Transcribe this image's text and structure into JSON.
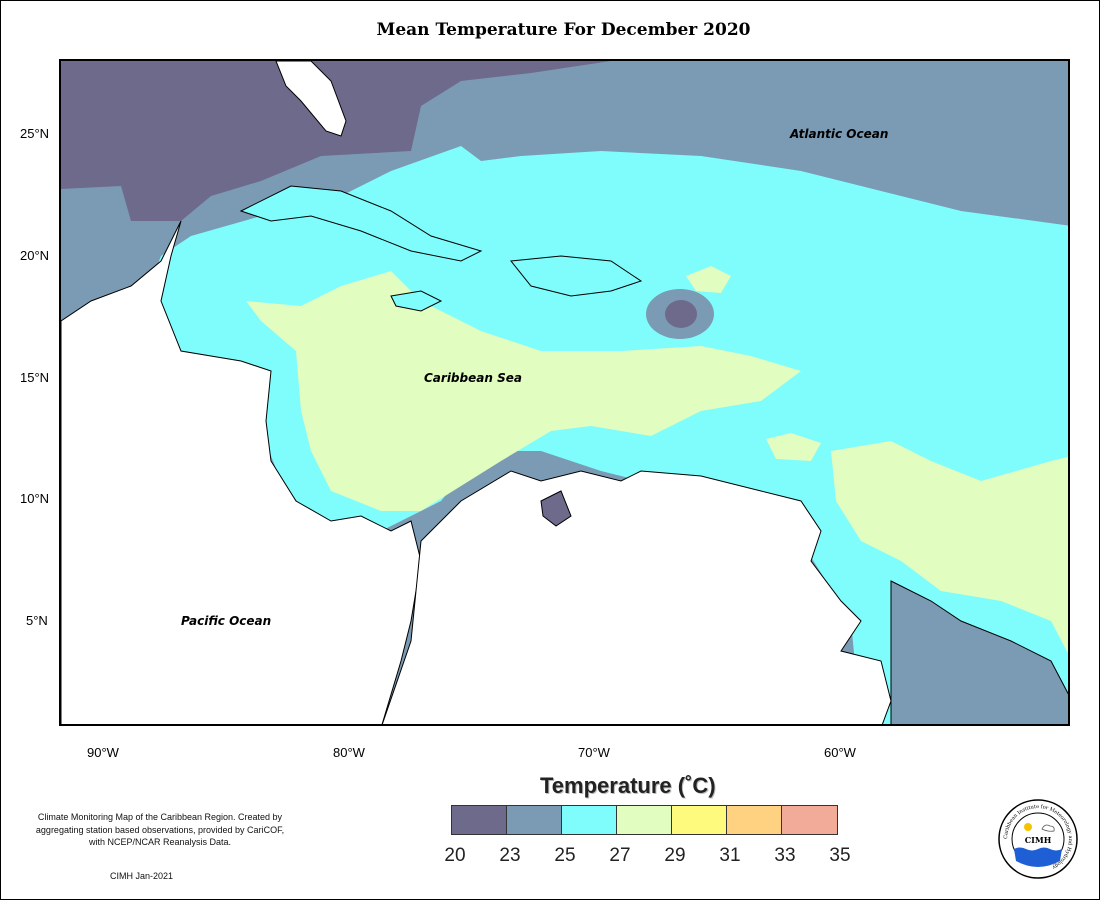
{
  "title": "Mean Temperature For December 2020",
  "lat_ticks": [
    "25°N",
    "20°N",
    "15°N",
    "10°N",
    "5°N"
  ],
  "lon_ticks": [
    "90°W",
    "80°W",
    "70°W",
    "60°W"
  ],
  "labels": {
    "atlantic": "Atlantic Ocean",
    "caribbean": "Caribbean Sea",
    "pacific": "Pacific Ocean"
  },
  "legend": {
    "title": "Temperature (˚C)",
    "colors": [
      "#6e6a8c",
      "#7b9bb4",
      "#7ffcfc",
      "#e1fdbf",
      "#fefa7e",
      "#fed280",
      "#f1ab98"
    ],
    "ticks": [
      "20",
      "23",
      "25",
      "27",
      "29",
      "31",
      "33",
      "35"
    ]
  },
  "note": "Climate Monitoring Map of the Caribbean Region. Created by aggregating station based observations, provided by CariCOF, with NCEP/NCAR Reanalysis Data.",
  "credit": "CIMH Jan-2021",
  "logo": {
    "ring_text": "Caribbean Institute for Meteorology and Hydrology",
    "abbr": "CIMH"
  }
}
